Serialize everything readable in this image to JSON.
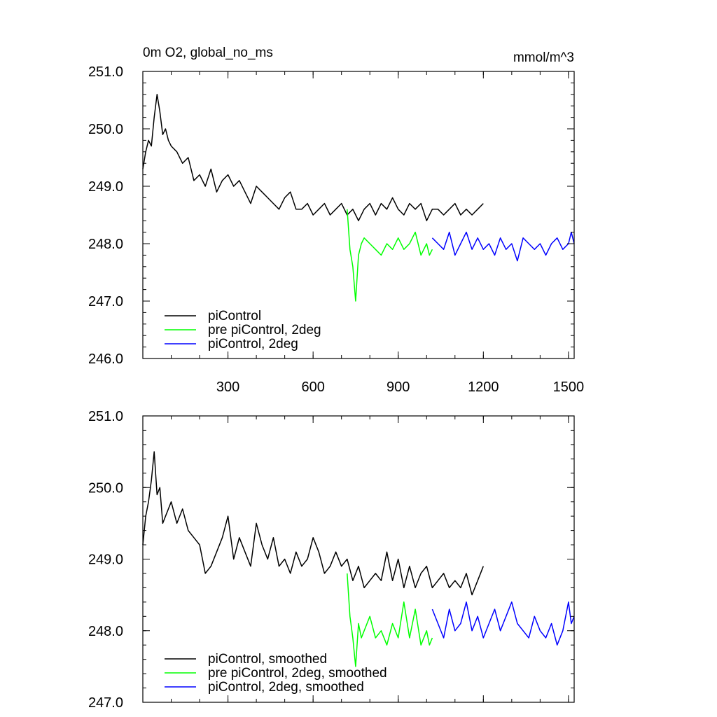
{
  "chart_data": [
    {
      "type": "line",
      "title": "0m O2, global_no_ms",
      "units": "mmol/m^3",
      "xlim": [
        0,
        1520
      ],
      "ylim": [
        246.0,
        251.0
      ],
      "xticks": [
        300,
        600,
        900,
        1200,
        1500
      ],
      "xtick_labels": [
        "300",
        "600",
        "900",
        "1200",
        "1500"
      ],
      "yticks": [
        246.0,
        247.0,
        248.0,
        249.0,
        250.0,
        251.0
      ],
      "ytick_labels": [
        "246.0",
        "247.0",
        "248.0",
        "249.0",
        "250.0",
        "251.0"
      ],
      "legend": {
        "placement": "bottom-left",
        "entries": [
          "piControl",
          "pre piControl, 2deg",
          "piControl, 2deg"
        ]
      },
      "series": [
        {
          "name": "piControl",
          "color": "#000000",
          "x": [
            0,
            10,
            20,
            30,
            40,
            50,
            60,
            70,
            80,
            90,
            100,
            120,
            140,
            160,
            180,
            200,
            220,
            240,
            260,
            280,
            300,
            320,
            340,
            360,
            380,
            400,
            420,
            440,
            460,
            480,
            500,
            520,
            540,
            560,
            580,
            600,
            620,
            640,
            660,
            680,
            700,
            720,
            740,
            760,
            780,
            800,
            820,
            840,
            860,
            880,
            900,
            920,
            940,
            960,
            980,
            1000,
            1020,
            1040,
            1060,
            1080,
            1100,
            1120,
            1140,
            1160,
            1180,
            1200
          ],
          "values": [
            249.3,
            249.6,
            249.8,
            249.7,
            250.2,
            250.6,
            250.3,
            249.9,
            250.0,
            249.8,
            249.7,
            249.6,
            249.4,
            249.5,
            249.1,
            249.2,
            249.0,
            249.3,
            248.9,
            249.1,
            249.2,
            249.0,
            249.1,
            248.9,
            248.7,
            249.0,
            248.9,
            248.8,
            248.7,
            248.6,
            248.8,
            248.9,
            248.6,
            248.6,
            248.7,
            248.5,
            248.6,
            248.7,
            248.5,
            248.6,
            248.7,
            248.5,
            248.6,
            248.4,
            248.6,
            248.7,
            248.5,
            248.7,
            248.6,
            248.8,
            248.6,
            248.5,
            248.7,
            248.6,
            248.7,
            248.4,
            248.6,
            248.6,
            248.5,
            248.6,
            248.7,
            248.5,
            248.6,
            248.5,
            248.6,
            248.7
          ]
        },
        {
          "name": "pre piControl, 2deg",
          "color": "#00ff00",
          "x": [
            720,
            730,
            740,
            750,
            760,
            770,
            780,
            800,
            820,
            840,
            860,
            880,
            900,
            920,
            940,
            960,
            980,
            1000,
            1010,
            1020
          ],
          "values": [
            248.6,
            247.9,
            247.6,
            247.0,
            247.8,
            248.0,
            248.1,
            248.0,
            247.9,
            247.8,
            248.0,
            247.9,
            248.1,
            247.9,
            248.0,
            248.2,
            247.8,
            248.0,
            247.8,
            247.9
          ]
        },
        {
          "name": "piControl, 2deg",
          "color": "#0000ff",
          "x": [
            1020,
            1040,
            1060,
            1080,
            1100,
            1120,
            1140,
            1160,
            1180,
            1200,
            1220,
            1240,
            1260,
            1280,
            1300,
            1320,
            1340,
            1360,
            1380,
            1400,
            1420,
            1440,
            1460,
            1480,
            1500,
            1510,
            1520
          ],
          "values": [
            248.1,
            248.0,
            247.9,
            248.2,
            247.8,
            248.0,
            248.2,
            247.9,
            248.1,
            247.9,
            248.0,
            247.8,
            248.1,
            247.9,
            248.0,
            247.7,
            248.1,
            248.0,
            247.9,
            248.0,
            247.8,
            248.0,
            248.1,
            247.9,
            248.0,
            248.2,
            248.0
          ]
        }
      ]
    },
    {
      "type": "line",
      "title": "",
      "units": "",
      "xlim": [
        0,
        1520
      ],
      "ylim": [
        247.0,
        251.0
      ],
      "xticks": [
        300,
        600,
        900,
        1200,
        1500
      ],
      "xtick_labels": [],
      "yticks": [
        247.0,
        248.0,
        249.0,
        250.0,
        251.0
      ],
      "ytick_labels": [
        "247.0",
        "248.0",
        "249.0",
        "250.0",
        "251.0"
      ],
      "legend": {
        "placement": "bottom-left",
        "entries": [
          "piControl, smoothed",
          "pre piControl, 2deg, smoothed",
          "piControl, 2deg, smoothed"
        ]
      },
      "series": [
        {
          "name": "piControl, smoothed",
          "color": "#000000",
          "x": [
            0,
            10,
            20,
            30,
            40,
            50,
            60,
            70,
            80,
            100,
            120,
            140,
            160,
            180,
            200,
            220,
            240,
            260,
            280,
            300,
            320,
            340,
            360,
            380,
            400,
            420,
            440,
            460,
            480,
            500,
            520,
            540,
            560,
            580,
            600,
            620,
            640,
            660,
            680,
            700,
            720,
            740,
            760,
            780,
            800,
            820,
            840,
            860,
            880,
            900,
            920,
            940,
            960,
            980,
            1000,
            1020,
            1040,
            1060,
            1080,
            1100,
            1120,
            1140,
            1160,
            1180,
            1200
          ],
          "values": [
            249.2,
            249.6,
            249.8,
            250.1,
            250.5,
            249.9,
            250.0,
            249.5,
            249.6,
            249.8,
            249.5,
            249.7,
            249.4,
            249.3,
            249.2,
            248.8,
            248.9,
            249.1,
            249.3,
            249.6,
            249.0,
            249.3,
            249.1,
            248.9,
            249.5,
            249.2,
            249.0,
            249.3,
            248.9,
            249.0,
            248.8,
            249.1,
            248.9,
            249.0,
            249.3,
            249.1,
            248.8,
            248.9,
            249.1,
            248.9,
            249.0,
            248.7,
            248.9,
            248.6,
            248.7,
            248.8,
            248.7,
            249.1,
            248.7,
            249.0,
            248.6,
            248.9,
            248.6,
            248.8,
            248.9,
            248.6,
            248.7,
            248.8,
            248.6,
            248.7,
            248.6,
            248.8,
            248.5,
            248.7,
            248.9
          ]
        },
        {
          "name": "pre piControl, 2deg, smoothed",
          "color": "#00ff00",
          "x": [
            720,
            730,
            740,
            750,
            760,
            770,
            780,
            800,
            820,
            840,
            860,
            880,
            900,
            920,
            940,
            960,
            980,
            1000,
            1010,
            1020
          ],
          "values": [
            248.8,
            248.2,
            247.9,
            247.5,
            248.1,
            247.9,
            248.0,
            248.2,
            247.9,
            248.0,
            247.8,
            248.1,
            247.9,
            248.4,
            247.9,
            248.3,
            247.8,
            248.0,
            247.8,
            247.9
          ]
        },
        {
          "name": "piControl, 2deg, smoothed",
          "color": "#0000ff",
          "x": [
            1020,
            1040,
            1060,
            1080,
            1100,
            1120,
            1140,
            1160,
            1180,
            1200,
            1220,
            1240,
            1260,
            1280,
            1300,
            1320,
            1340,
            1360,
            1380,
            1400,
            1420,
            1440,
            1460,
            1480,
            1500,
            1510,
            1520
          ],
          "values": [
            248.3,
            248.1,
            247.9,
            248.3,
            248.0,
            248.1,
            248.4,
            248.0,
            248.2,
            247.9,
            248.1,
            248.3,
            248.0,
            248.2,
            248.4,
            248.1,
            248.0,
            247.9,
            248.2,
            248.0,
            247.9,
            248.1,
            247.8,
            248.0,
            248.4,
            248.1,
            248.2
          ]
        }
      ]
    }
  ]
}
